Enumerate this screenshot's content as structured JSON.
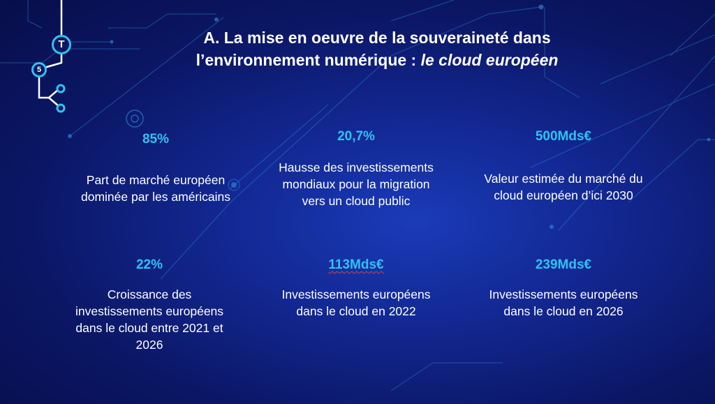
{
  "title": {
    "line1": "A. La mise en oeuvre de la souveraineté dans",
    "line2_plain": "l’environnement numérique : ",
    "line2_italic": "le cloud européen"
  },
  "logo": {
    "letter_t": "T",
    "digit": "5"
  },
  "stats": [
    {
      "value": "85%",
      "label": "Part de marché européen dominée par les américains"
    },
    {
      "value": "20,7%",
      "label": "Hausse des investissements mondiaux pour la migration vers un cloud public"
    },
    {
      "value": "500Mds€",
      "label": "Valeur estimée du marché du cloud européen d’ici 2030"
    },
    {
      "value": "22%",
      "label": "Croissance des investissements européens dans le cloud entre 2021 et 2026"
    },
    {
      "value": "113Mds€",
      "label": "Investissements européens dans le cloud en 2022"
    },
    {
      "value": "239Mds€",
      "label": "Investissements européens dans le cloud en 2026"
    }
  ],
  "colors": {
    "accent": "#2fc2f2",
    "text": "#ffffff",
    "background": "#12268f"
  }
}
